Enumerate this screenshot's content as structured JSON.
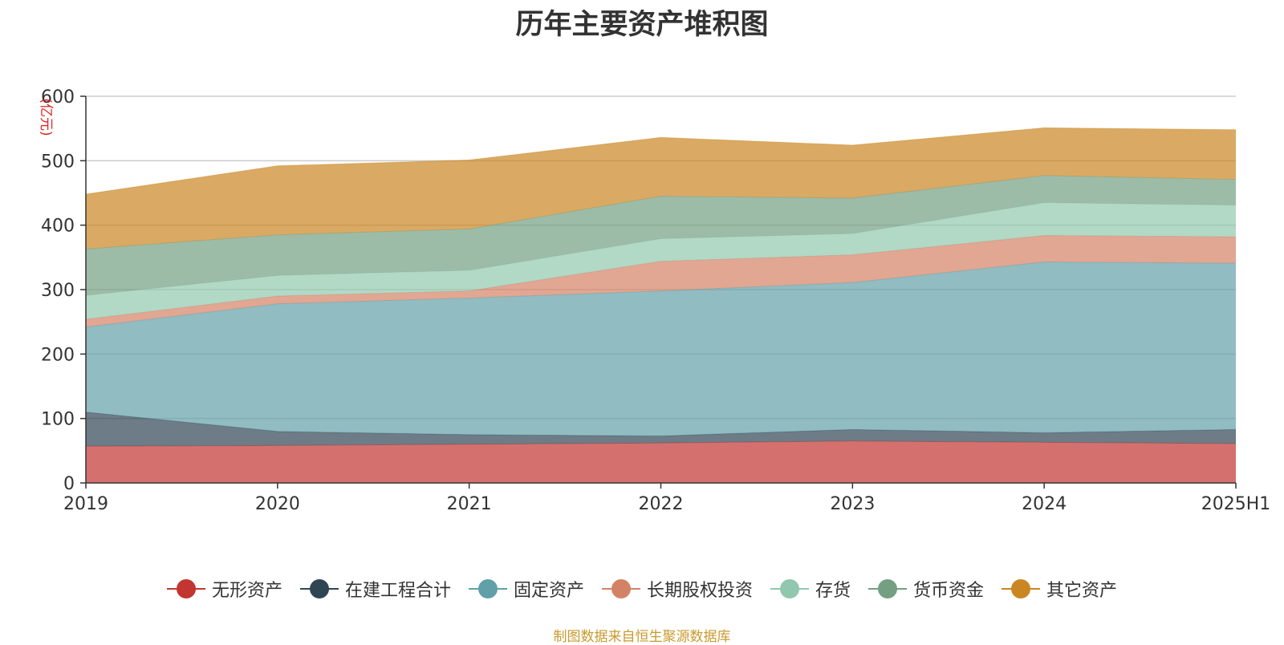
{
  "chart_data": {
    "type": "area",
    "stacked": true,
    "title": "历年主要资产堆积图",
    "ylabel": "(亿元)",
    "ylim": [
      0,
      600
    ],
    "yticks": [
      0,
      100,
      200,
      300,
      400,
      500,
      600
    ],
    "grid": true,
    "legend_position": "bottom",
    "categories": [
      "2019",
      "2020",
      "2021",
      "2022",
      "2023",
      "2024",
      "2025H1"
    ],
    "series": [
      {
        "name": "无形资产",
        "color": "#c23531",
        "values": [
          57,
          58,
          60,
          62,
          65,
          63,
          61
        ]
      },
      {
        "name": "在建工程合计",
        "color": "#2f4554",
        "values": [
          53,
          22,
          15,
          11,
          18,
          15,
          22
        ]
      },
      {
        "name": "固定资产",
        "color": "#61a0a8",
        "values": [
          132,
          198,
          212,
          225,
          228,
          265,
          258
        ]
      },
      {
        "name": "长期股权投资",
        "color": "#d48265",
        "values": [
          12,
          12,
          11,
          46,
          43,
          41,
          41
        ]
      },
      {
        "name": "存货",
        "color": "#91c7ae",
        "values": [
          37,
          32,
          32,
          35,
          33,
          51,
          49
        ]
      },
      {
        "name": "货币资金",
        "color": "#749f83",
        "values": [
          72,
          63,
          64,
          66,
          55,
          42,
          40
        ]
      },
      {
        "name": "其它资产",
        "color": "#ca8622",
        "values": [
          85,
          107,
          107,
          91,
          82,
          74,
          77
        ]
      }
    ]
  },
  "source_text": "制图数据来自恒生聚源数据库",
  "source_color": "#c99a2e",
  "axis_color": "#333333",
  "grid_color": "#cccccc",
  "ylabel_color": "#e02020"
}
